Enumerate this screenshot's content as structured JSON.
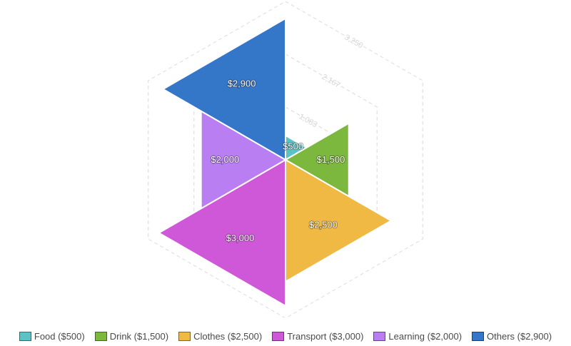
{
  "chart_data": {
    "type": "polar-area",
    "title": "",
    "shape": "hexagon",
    "rmax": 3250,
    "grid_levels": [
      1083,
      2167,
      3250
    ],
    "tick_labels": [
      "1,083",
      "2,167",
      "3,250"
    ],
    "categories": [
      "Food",
      "Drink",
      "Clothes",
      "Transport",
      "Learning",
      "Others"
    ],
    "values": [
      500,
      1500,
      2500,
      3000,
      2000,
      2900
    ],
    "value_labels": [
      "$500",
      "$1,500",
      "$2,500",
      "$3,000",
      "$2,000",
      "$2,900"
    ],
    "colors": [
      "#5bc3c6",
      "#7cb83e",
      "#efb943",
      "#cf58d9",
      "#b87ef2",
      "#3476c8"
    ],
    "legend": {
      "position": "bottom",
      "entries": [
        "Food ($500)",
        "Drink ($1,500)",
        "Clothes ($2,500)",
        "Transport ($3,000)",
        "Learning ($2,000)",
        "Others ($2,900)"
      ]
    }
  }
}
